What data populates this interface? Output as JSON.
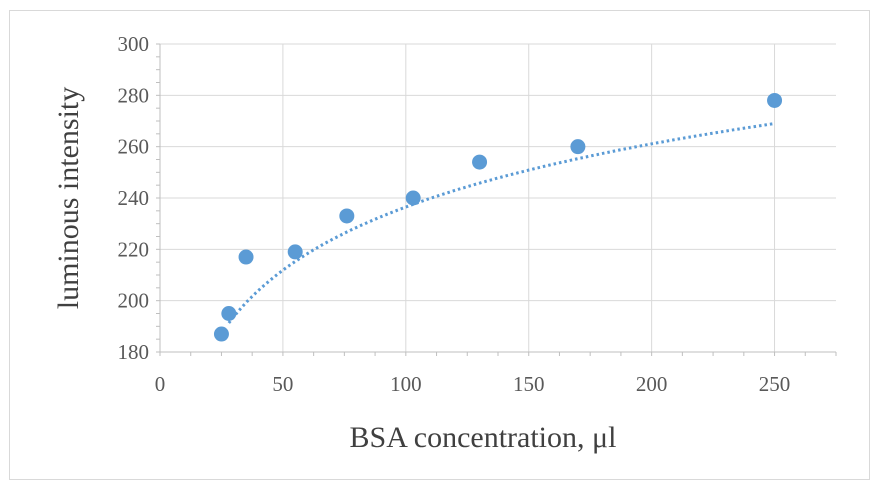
{
  "chart_data": {
    "type": "scatter",
    "title": "",
    "xlabel": "BSA concentration, μl",
    "ylabel": "luminous intensity",
    "xlim": [
      0,
      275
    ],
    "ylim": [
      180,
      300
    ],
    "xticks": [
      "0",
      "50",
      "100",
      "150",
      "200",
      "250"
    ],
    "yticks": [
      "180",
      "200",
      "220",
      "240",
      "260",
      "280",
      "300"
    ],
    "grid": true,
    "legend": "none",
    "series": [
      {
        "marker_color": "#5b9bd5",
        "points": [
          {
            "x": 25,
            "y": 187
          },
          {
            "x": 28,
            "y": 195
          },
          {
            "x": 35,
            "y": 217
          },
          {
            "x": 55,
            "y": 219
          },
          {
            "x": 76,
            "y": 233
          },
          {
            "x": 103,
            "y": 240
          },
          {
            "x": 130,
            "y": 254
          },
          {
            "x": 170,
            "y": 260
          },
          {
            "x": 250,
            "y": 278
          }
        ]
      }
    ],
    "trendline": {
      "kind": "logarithmic",
      "style": "dotted",
      "color": "#5b9bd5",
      "x_range": [
        28,
        250
      ],
      "coef_a": 35.5,
      "coef_b": 73
    }
  }
}
